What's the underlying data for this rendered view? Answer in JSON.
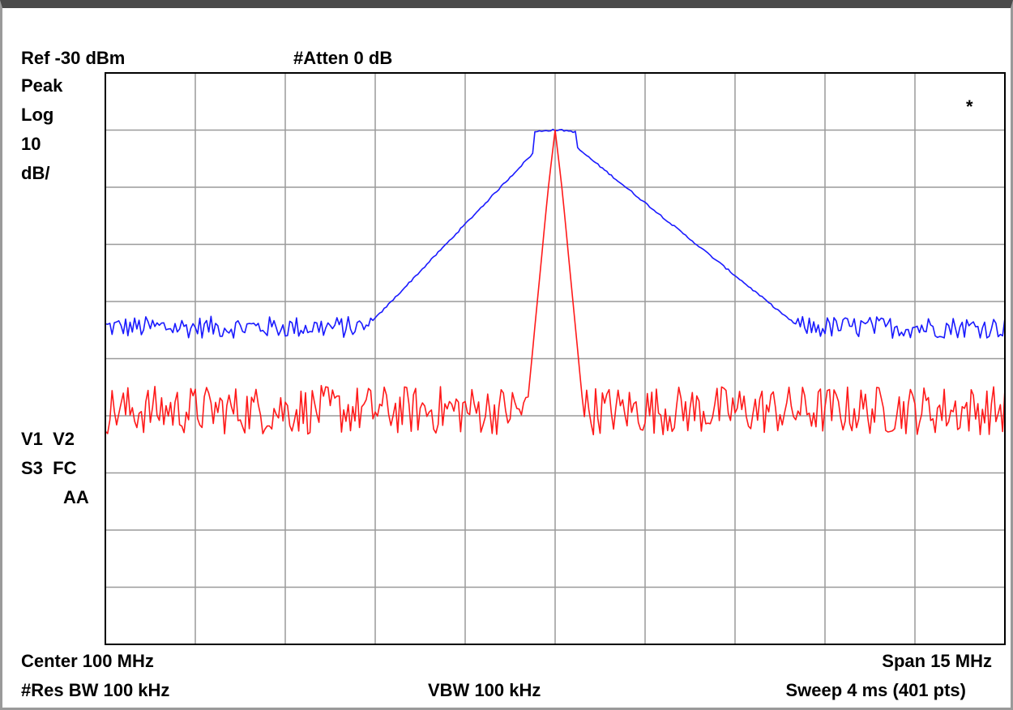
{
  "header": {
    "ref_label": "Ref -30 dBm",
    "atten_label": "#Atten 0 dB"
  },
  "left_panel": {
    "detector": "Peak",
    "scale_type": "Log",
    "scale_value": "10",
    "scale_unit": "dB/",
    "trace_flags_1": "V1  V2",
    "trace_flags_2": "S3  FC",
    "trace_flags_3": "AA"
  },
  "marker_star": "*",
  "footer": {
    "center": "Center 100 MHz",
    "span": "Span 15 MHz",
    "rbw": "#Res BW 100 kHz",
    "vbw": "VBW 100 kHz",
    "sweep": "Sweep 4 ms (401 pts)"
  },
  "chart_data": {
    "type": "line",
    "x_unit": "MHz",
    "y_unit": "dBm",
    "xlim": [
      92.5,
      107.5
    ],
    "ylim": [
      -130,
      -30
    ],
    "x_divisions": 10,
    "y_divisions": 10,
    "grid": true,
    "points": 401,
    "series": [
      {
        "color": "#1a1aff",
        "style": "wide-hump",
        "peak_freq": 100,
        "peak_level": -40,
        "noise_floor": -74.5,
        "noise_amplitude": 1.2,
        "knee_left": 96.95,
        "knee_right": 103.95
      },
      {
        "color": "#ff1a1a",
        "style": "narrow-peak",
        "peak_freq": 100,
        "peak_level": -40,
        "noise_floor": -89,
        "noise_amplitude": 2.4,
        "half_width_mhz": 0.55
      }
    ]
  }
}
